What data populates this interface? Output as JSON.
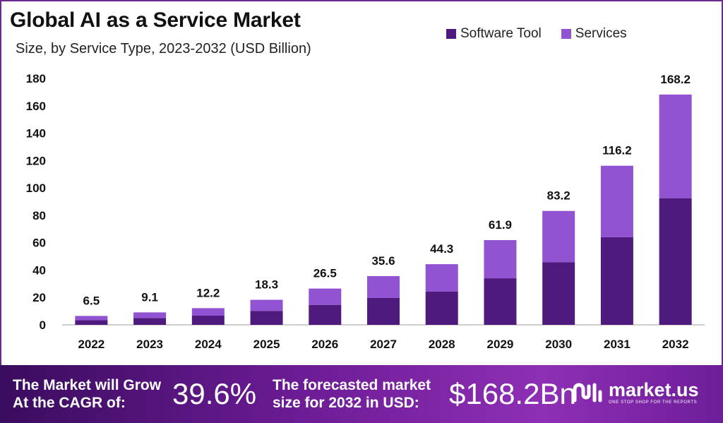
{
  "header": {
    "title": "Global AI as a Service Market",
    "subtitle": "Size, by Service Type, 2023-2032 (USD Billion)"
  },
  "legend": [
    {
      "label": "Software Tool",
      "color": "#4e1a7e"
    },
    {
      "label": "Services",
      "color": "#9153d1"
    }
  ],
  "chart_data": {
    "type": "bar",
    "stacked": true,
    "categories": [
      "2022",
      "2023",
      "2024",
      "2025",
      "2026",
      "2027",
      "2028",
      "2029",
      "2030",
      "2031",
      "2032"
    ],
    "series": [
      {
        "name": "Software Tool",
        "color": "#4e1a7e",
        "values": [
          3.5,
          5.0,
          6.7,
          10.1,
          14.6,
          19.6,
          24.4,
          34.0,
          45.8,
          64.0,
          92.5
        ]
      },
      {
        "name": "Services",
        "color": "#9153d1",
        "values": [
          3.0,
          4.1,
          5.5,
          8.2,
          11.9,
          16.0,
          19.9,
          27.9,
          37.4,
          52.2,
          75.7
        ]
      }
    ],
    "totals": [
      "6.5",
      "9.1",
      "12.2",
      "18.3",
      "26.5",
      "35.6",
      "44.3",
      "61.9",
      "83.2",
      "116.2",
      "168.2"
    ],
    "yticks": [
      "0",
      "20",
      "40",
      "60",
      "80",
      "100",
      "120",
      "140",
      "160",
      "180"
    ],
    "ylim": [
      0,
      180
    ],
    "grid": false,
    "legend_position": "top-right"
  },
  "footer": {
    "cagr_label_line1": "The Market will Grow",
    "cagr_label_line2": "At the CAGR of:",
    "cagr_value": "39.6%",
    "forecast_label_line1": "The forecasted market",
    "forecast_label_line2": "size for 2032 in USD:",
    "forecast_value": "$168.2Bn",
    "brand_name": "market.us",
    "brand_tagline": "ONE STOP SHOP FOR THE REPORTS"
  }
}
